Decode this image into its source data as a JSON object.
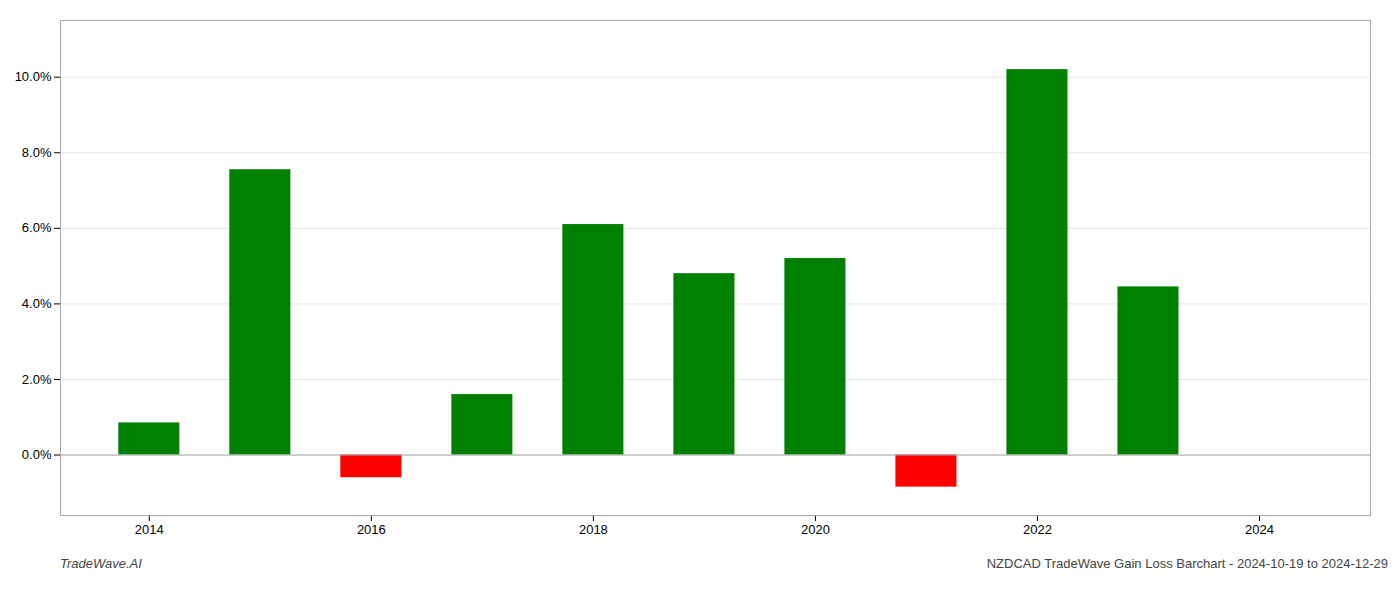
{
  "chart_data": {
    "type": "bar",
    "title": "NZDCAD TradeWave Gain Loss Barchart - 2024-10-19 to 2024-12-29",
    "annotations": [
      "TradeWave.AI"
    ],
    "x": [
      2014,
      2015,
      2016,
      2017,
      2018,
      2019,
      2020,
      2021,
      2022,
      2023
    ],
    "values": [
      0.0085,
      0.0755,
      -0.006,
      0.016,
      0.061,
      0.048,
      0.052,
      -0.0085,
      0.102,
      0.0445
    ],
    "colors": [
      "#008000",
      "#008000",
      "#ff0000",
      "#008000",
      "#008000",
      "#008000",
      "#008000",
      "#ff0000",
      "#008000",
      "#008000"
    ],
    "xlim": [
      2013.2,
      2025.0
    ],
    "xticks": [
      2014,
      2016,
      2018,
      2020,
      2022,
      2024
    ],
    "ylim": [
      -0.016,
      0.115
    ],
    "yticks": [
      {
        "value": 0.0,
        "label": "0.0%"
      },
      {
        "value": 0.02,
        "label": "2.0%"
      },
      {
        "value": 0.04,
        "label": "4.0%"
      },
      {
        "value": 0.06,
        "label": "6.0%"
      },
      {
        "value": 0.08,
        "label": "8.0%"
      },
      {
        "value": 0.1,
        "label": "10.0%"
      }
    ],
    "grid": true
  }
}
